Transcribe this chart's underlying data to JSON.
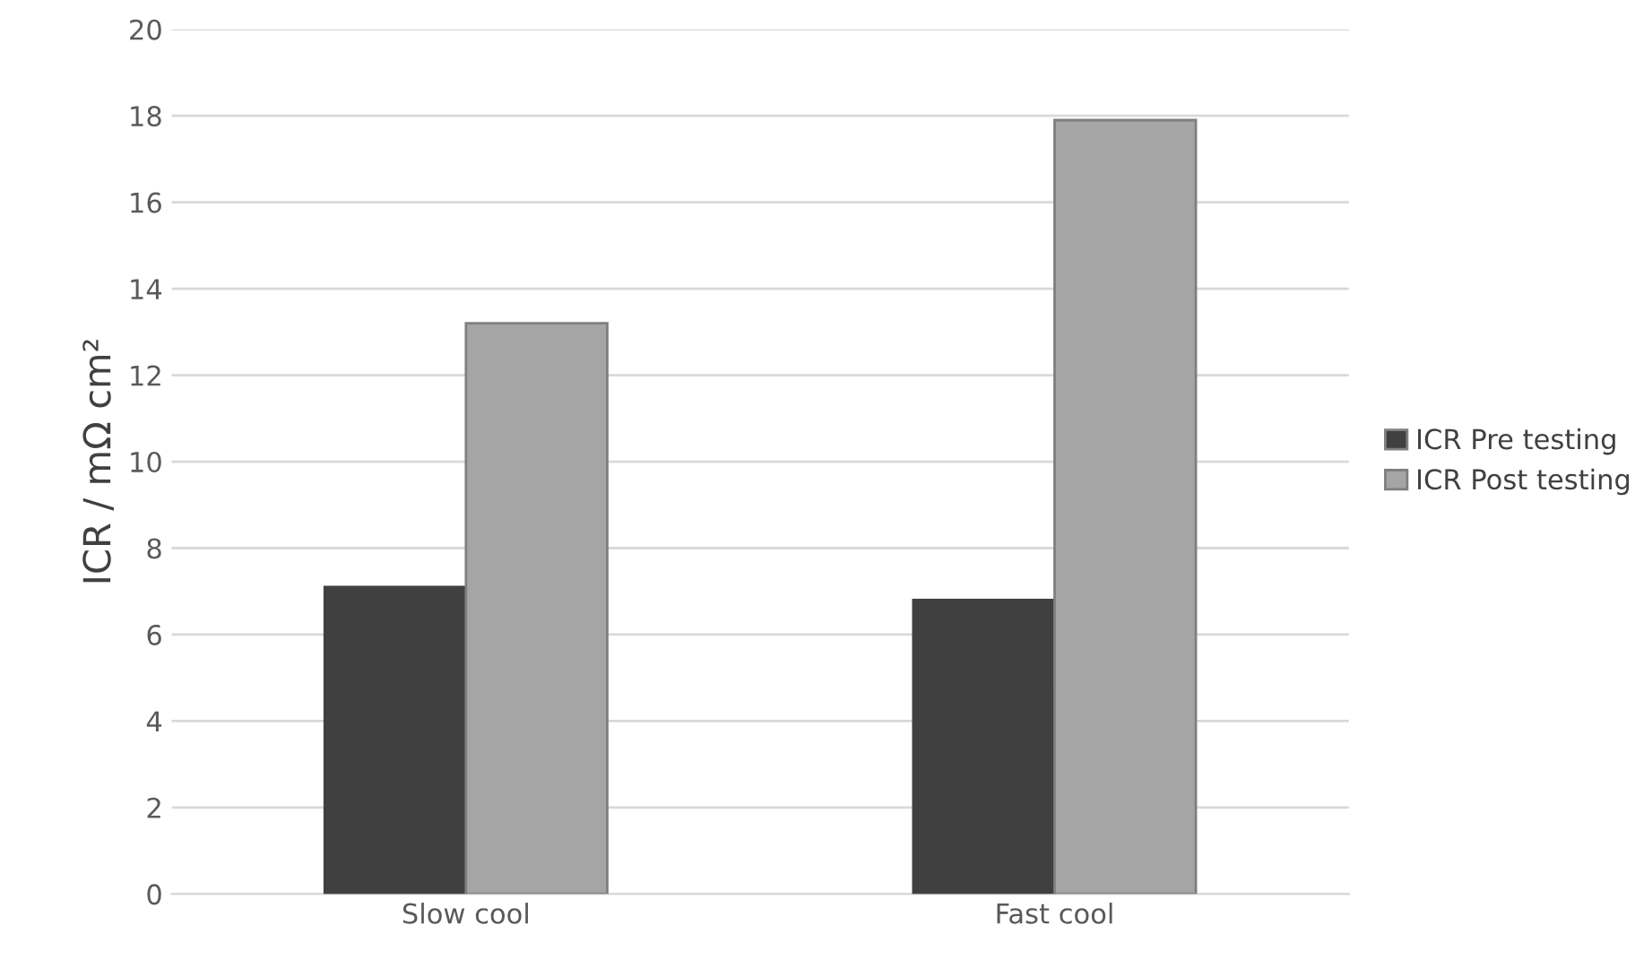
{
  "chart_data": {
    "type": "bar",
    "ylabel": "ICR / mΩ cm²",
    "categories": [
      "Slow cool",
      "Fast cool"
    ],
    "series": [
      {
        "name": "ICR Pre testing",
        "color": "#404040",
        "values": [
          7.1,
          6.8
        ]
      },
      {
        "name": "ICR Post testing",
        "color": "#a5a5a5",
        "values": [
          13.2,
          17.9
        ]
      }
    ],
    "ylim": [
      0,
      20
    ],
    "yticks": [
      0,
      2,
      4,
      6,
      8,
      10,
      12,
      14,
      16,
      18,
      20
    ],
    "grid": "y",
    "legend": "right"
  }
}
